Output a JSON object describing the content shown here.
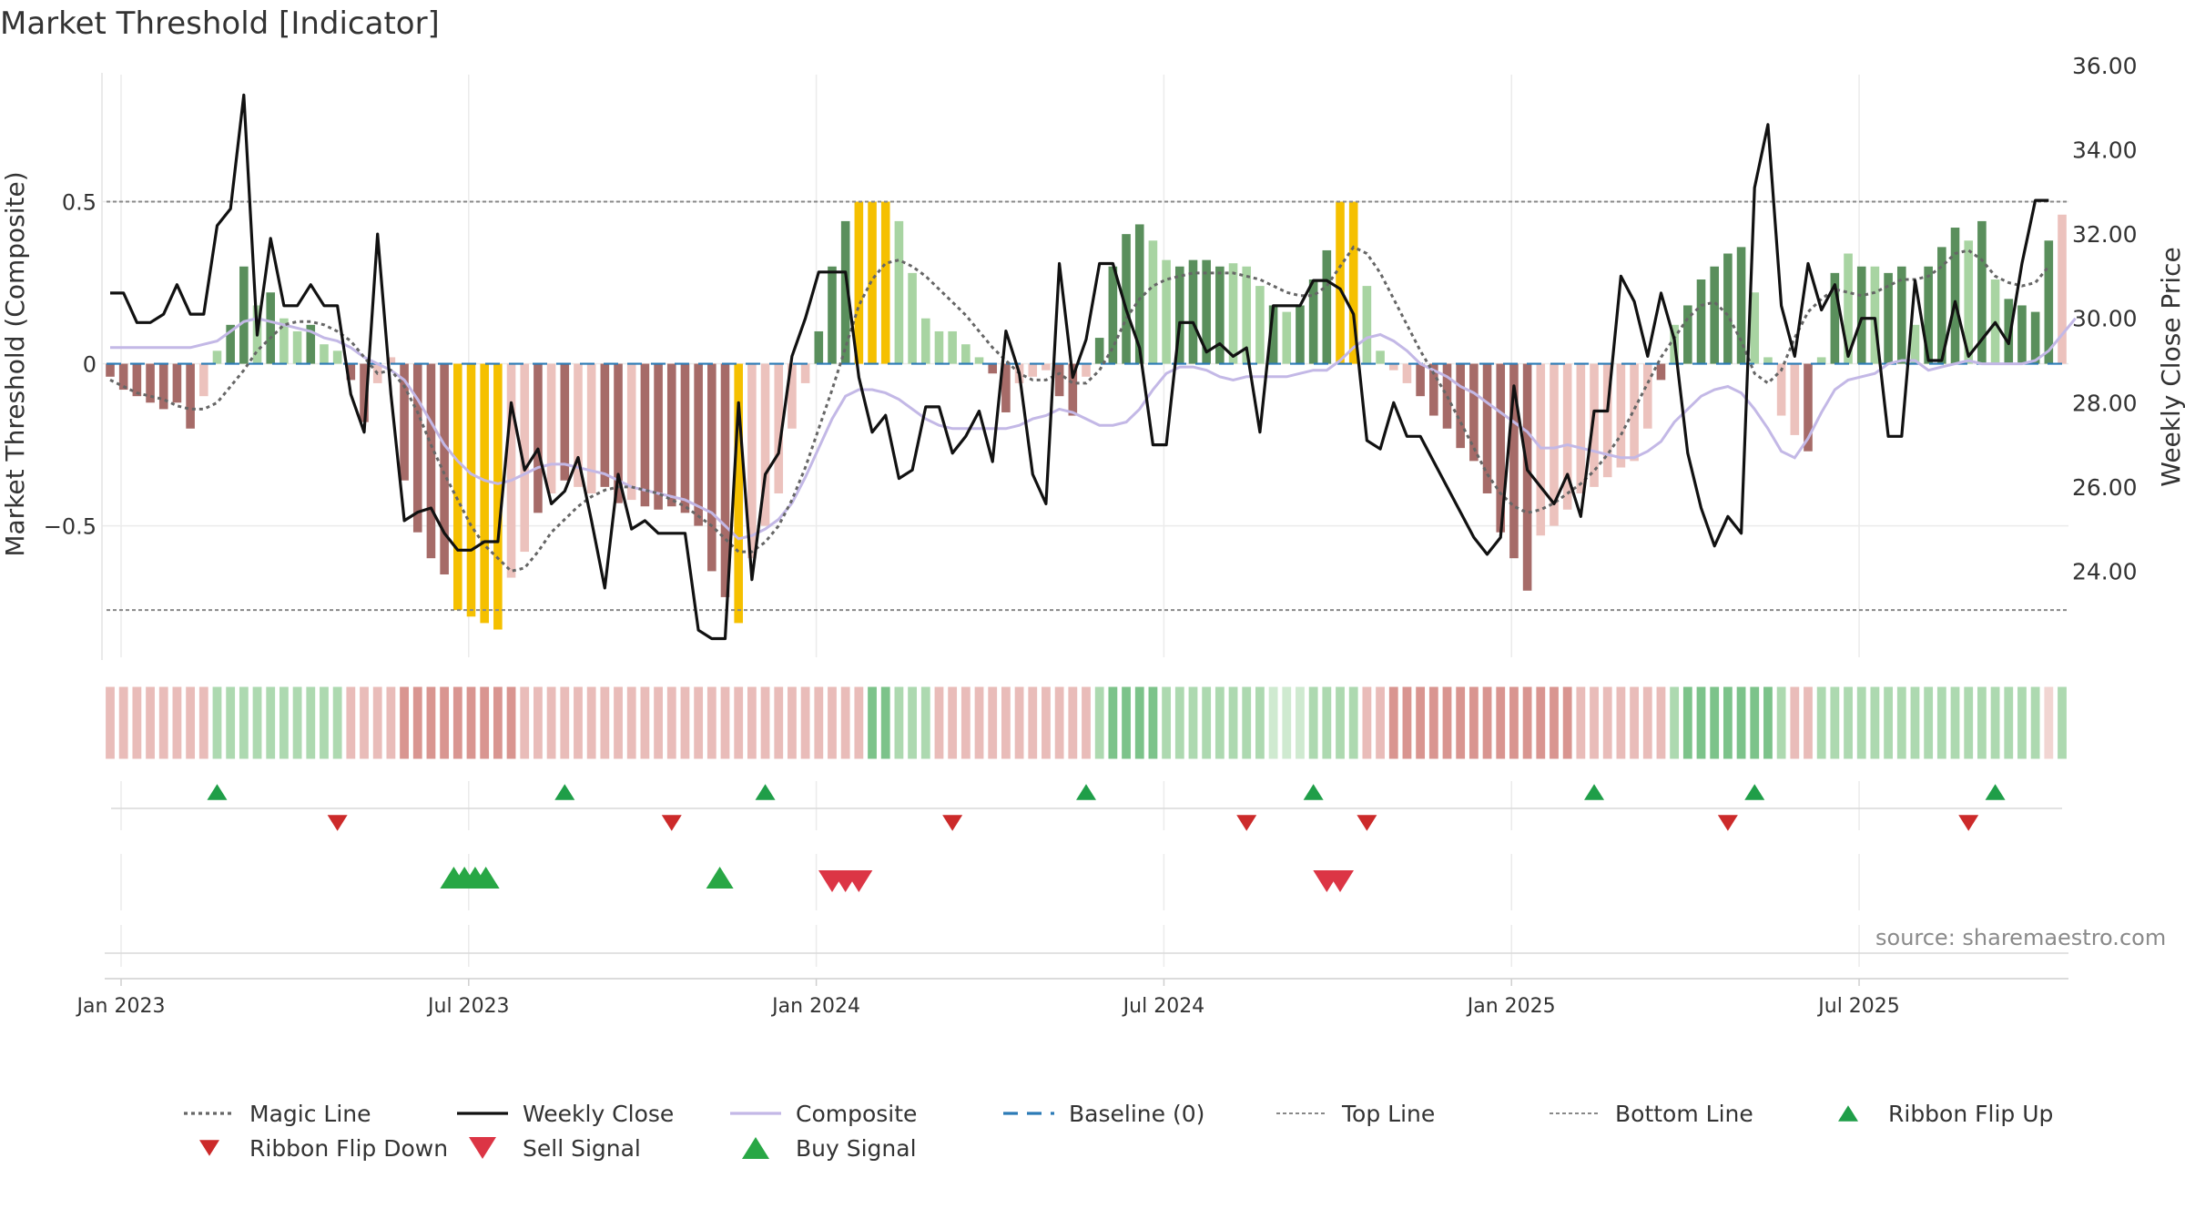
{
  "chart_data": {
    "type": "bar",
    "title": "Market Threshold [Indicator]",
    "source_note": "source: sharemaestro.com",
    "y_left_label": "Market Threshold (Composite)",
    "y_right_label": "Weekly Close Price",
    "y_left_range": [
      -0.9,
      0.92
    ],
    "y_left_ticks": [
      {
        "value": 0.5,
        "label": "0.5"
      },
      {
        "value": 0,
        "label": "0"
      },
      {
        "value": -0.5,
        "label": "−0.5"
      }
    ],
    "y_right_range": [
      22.0,
      36.0
    ],
    "y_right_ticks": [
      {
        "value": 36,
        "label": "36.00"
      },
      {
        "value": 34,
        "label": "34.00"
      },
      {
        "value": 32,
        "label": "32.00"
      },
      {
        "value": 30,
        "label": "30.00"
      },
      {
        "value": 28,
        "label": "28.00"
      },
      {
        "value": 26,
        "label": "26.00"
      },
      {
        "value": 24,
        "label": "24.00"
      }
    ],
    "top_line": 0.5,
    "bottom_line": -0.76,
    "baseline": 0,
    "x_ticks": [
      {
        "week": 0,
        "label": "Jan 2023"
      },
      {
        "week": 26,
        "label": "Jul 2023"
      },
      {
        "week": 52,
        "label": "Jan 2024"
      },
      {
        "week": 78,
        "label": "Jul 2024"
      },
      {
        "week": 104,
        "label": "Jan 2025"
      },
      {
        "week": 130,
        "label": "Jul 2025"
      }
    ],
    "colors": {
      "bar_dark_green": "#5a8f5c",
      "bar_light_green": "#a8d4a2",
      "bar_dark_red": "#a66b68",
      "bar_light_red": "#ecc2bd",
      "bar_signal": "#f5c000",
      "magic_line": "#666666",
      "weekly_close": "#111111",
      "composite": "#c3b8e6",
      "baseline": "#2c7bb6",
      "threshold": "#888888",
      "flip_up": "#1f9e48",
      "flip_down": "#cc2a2a",
      "sell_signal": "#dc3545",
      "buy_signal": "#28a745",
      "grid": "#ebebeb"
    },
    "composite_bars": [
      -0.04,
      -0.08,
      -0.1,
      -0.12,
      -0.14,
      -0.12,
      -0.2,
      -0.1,
      0.04,
      0.12,
      0.3,
      0.18,
      0.22,
      0.14,
      0.1,
      0.12,
      0.06,
      0.04,
      -0.05,
      -0.18,
      -0.06,
      0.02,
      -0.36,
      -0.52,
      -0.6,
      -0.65,
      -0.76,
      -0.78,
      -0.8,
      -0.82,
      -0.66,
      -0.58,
      -0.46,
      -0.4,
      -0.36,
      -0.38,
      -0.4,
      -0.38,
      -0.43,
      -0.42,
      -0.44,
      -0.45,
      -0.44,
      -0.46,
      -0.5,
      -0.64,
      -0.72,
      -0.8,
      -0.6,
      -0.5,
      -0.4,
      -0.2,
      -0.06,
      0.1,
      0.3,
      0.44,
      0.5,
      0.5,
      0.5,
      0.44,
      0.28,
      0.14,
      0.1,
      0.1,
      0.06,
      0.02,
      -0.03,
      -0.15,
      -0.06,
      -0.04,
      -0.02,
      -0.1,
      -0.16,
      -0.04,
      0.08,
      0.3,
      0.4,
      0.43,
      0.38,
      0.32,
      0.3,
      0.32,
      0.32,
      0.3,
      0.31,
      0.3,
      0.24,
      0.18,
      0.16,
      0.18,
      0.26,
      0.35,
      0.5,
      0.5,
      0.24,
      0.04,
      -0.02,
      -0.06,
      -0.1,
      -0.16,
      -0.2,
      -0.26,
      -0.3,
      -0.4,
      -0.52,
      -0.6,
      -0.7,
      -0.53,
      -0.5,
      -0.45,
      -0.4,
      -0.38,
      -0.35,
      -0.32,
      -0.3,
      -0.2,
      -0.05,
      0.12,
      0.18,
      0.26,
      0.3,
      0.34,
      0.36,
      0.22,
      0.02,
      -0.16,
      -0.22,
      -0.27,
      0.02,
      0.28,
      0.34,
      0.3,
      0.3,
      0.28,
      0.3,
      0.12,
      0.3,
      0.36,
      0.42,
      0.38,
      0.44,
      0.26,
      0.2,
      0.18,
      0.16,
      0.38,
      0.46
    ],
    "bar_styles": [
      "R",
      "R",
      "R",
      "R",
      "R",
      "R",
      "R",
      "r",
      "g",
      "G",
      "G",
      "g",
      "G",
      "g",
      "g",
      "G",
      "g",
      "g",
      "R",
      "R",
      "r",
      "r",
      "R",
      "R",
      "R",
      "R",
      "S",
      "S",
      "S",
      "S",
      "r",
      "r",
      "R",
      "r",
      "R",
      "r",
      "r",
      "R",
      "R",
      "r",
      "R",
      "R",
      "R",
      "R",
      "R",
      "R",
      "R",
      "S",
      "r",
      "r",
      "r",
      "r",
      "r",
      "G",
      "G",
      "G",
      "S",
      "S",
      "S",
      "g",
      "g",
      "g",
      "g",
      "g",
      "g",
      "g",
      "R",
      "R",
      "r",
      "r",
      "r",
      "R",
      "R",
      "r",
      "G",
      "G",
      "G",
      "G",
      "g",
      "g",
      "G",
      "G",
      "G",
      "G",
      "g",
      "g",
      "g",
      "G",
      "g",
      "G",
      "G",
      "G",
      "S",
      "S",
      "g",
      "g",
      "r",
      "r",
      "R",
      "R",
      "R",
      "R",
      "R",
      "R",
      "R",
      "R",
      "R",
      "r",
      "r",
      "r",
      "r",
      "r",
      "r",
      "r",
      "r",
      "r",
      "R",
      "g",
      "G",
      "G",
      "G",
      "G",
      "G",
      "g",
      "g",
      "r",
      "r",
      "R",
      "g",
      "G",
      "g",
      "G",
      "g",
      "G",
      "G",
      "g",
      "G",
      "G",
      "G",
      "g",
      "G",
      "g",
      "G",
      "G",
      "G",
      "G"
    ],
    "magic_line": [
      -0.05,
      -0.07,
      -0.09,
      -0.1,
      -0.11,
      -0.13,
      -0.14,
      -0.14,
      -0.12,
      -0.07,
      -0.02,
      0.04,
      0.08,
      0.12,
      0.13,
      0.13,
      0.12,
      0.1,
      0.07,
      0.02,
      -0.03,
      -0.02,
      -0.07,
      -0.15,
      -0.25,
      -0.34,
      -0.42,
      -0.5,
      -0.56,
      -0.6,
      -0.64,
      -0.63,
      -0.58,
      -0.52,
      -0.48,
      -0.44,
      -0.41,
      -0.39,
      -0.38,
      -0.38,
      -0.39,
      -0.4,
      -0.42,
      -0.44,
      -0.47,
      -0.5,
      -0.54,
      -0.58,
      -0.58,
      -0.55,
      -0.5,
      -0.42,
      -0.32,
      -0.2,
      -0.08,
      0.05,
      0.18,
      0.26,
      0.31,
      0.32,
      0.3,
      0.27,
      0.23,
      0.19,
      0.15,
      0.1,
      0.05,
      0.01,
      -0.03,
      -0.05,
      -0.05,
      -0.03,
      -0.06,
      -0.06,
      -0.02,
      0.05,
      0.14,
      0.2,
      0.24,
      0.26,
      0.27,
      0.28,
      0.28,
      0.28,
      0.28,
      0.27,
      0.26,
      0.24,
      0.22,
      0.21,
      0.21,
      0.24,
      0.3,
      0.36,
      0.34,
      0.28,
      0.2,
      0.12,
      0.04,
      -0.03,
      -0.1,
      -0.18,
      -0.26,
      -0.34,
      -0.4,
      -0.44,
      -0.46,
      -0.45,
      -0.43,
      -0.4,
      -0.37,
      -0.33,
      -0.28,
      -0.22,
      -0.14,
      -0.06,
      0.02,
      0.08,
      0.14,
      0.18,
      0.19,
      0.15,
      0.07,
      -0.03,
      -0.06,
      -0.02,
      0.08,
      0.16,
      0.2,
      0.23,
      0.22,
      0.21,
      0.22,
      0.24,
      0.26,
      0.26,
      0.27,
      0.3,
      0.34,
      0.35,
      0.32,
      0.27,
      0.25,
      0.24,
      0.25,
      0.3
    ],
    "composite_line": [
      0.05,
      0.05,
      0.05,
      0.05,
      0.05,
      0.05,
      0.05,
      0.06,
      0.07,
      0.1,
      0.13,
      0.14,
      0.13,
      0.12,
      0.11,
      0.1,
      0.08,
      0.07,
      0.05,
      0.02,
      0.0,
      -0.02,
      -0.05,
      -0.11,
      -0.18,
      -0.25,
      -0.3,
      -0.34,
      -0.36,
      -0.37,
      -0.36,
      -0.34,
      -0.32,
      -0.31,
      -0.31,
      -0.32,
      -0.33,
      -0.34,
      -0.36,
      -0.38,
      -0.39,
      -0.4,
      -0.41,
      -0.42,
      -0.44,
      -0.46,
      -0.5,
      -0.54,
      -0.53,
      -0.51,
      -0.48,
      -0.43,
      -0.35,
      -0.26,
      -0.17,
      -0.1,
      -0.08,
      -0.08,
      -0.09,
      -0.11,
      -0.14,
      -0.17,
      -0.19,
      -0.2,
      -0.2,
      -0.2,
      -0.2,
      -0.2,
      -0.19,
      -0.17,
      -0.16,
      -0.14,
      -0.15,
      -0.17,
      -0.19,
      -0.19,
      -0.18,
      -0.14,
      -0.08,
      -0.03,
      -0.01,
      -0.01,
      -0.02,
      -0.04,
      -0.05,
      -0.04,
      -0.04,
      -0.04,
      -0.04,
      -0.03,
      -0.02,
      -0.02,
      0.01,
      0.05,
      0.08,
      0.09,
      0.07,
      0.04,
      0.0,
      -0.02,
      -0.04,
      -0.07,
      -0.09,
      -0.12,
      -0.15,
      -0.18,
      -0.21,
      -0.26,
      -0.26,
      -0.25,
      -0.26,
      -0.27,
      -0.28,
      -0.29,
      -0.29,
      -0.27,
      -0.24,
      -0.18,
      -0.14,
      -0.1,
      -0.08,
      -0.07,
      -0.09,
      -0.14,
      -0.2,
      -0.27,
      -0.29,
      -0.23,
      -0.15,
      -0.08,
      -0.05,
      -0.04,
      -0.03,
      0.0,
      0.01,
      0.01,
      -0.02,
      -0.01,
      0.0,
      0.01,
      0.0,
      0.0,
      0.0,
      0.0,
      0.01,
      0.04,
      0.09,
      0.14
    ],
    "weekly_close": [
      30.6,
      30.6,
      29.9,
      29.9,
      30.1,
      30.8,
      30.1,
      30.1,
      32.2,
      32.6,
      35.3,
      29.6,
      31.9,
      30.3,
      30.3,
      30.8,
      30.3,
      30.3,
      28.2,
      27.3,
      32.0,
      28.2,
      25.2,
      25.4,
      25.5,
      24.9,
      24.5,
      24.5,
      24.7,
      24.7,
      28.0,
      26.4,
      26.9,
      25.6,
      25.9,
      26.7,
      25.2,
      23.6,
      26.3,
      25.0,
      25.2,
      24.9,
      24.9,
      24.9,
      22.6,
      22.4,
      22.4,
      28.0,
      23.8,
      26.3,
      26.8,
      29.1,
      30.0,
      31.1,
      31.1,
      31.1,
      28.6,
      27.3,
      27.7,
      26.2,
      26.4,
      27.9,
      27.9,
      26.8,
      27.2,
      27.8,
      26.6,
      29.7,
      28.7,
      26.3,
      25.6,
      31.3,
      28.6,
      29.5,
      31.3,
      31.3,
      30.2,
      29.3,
      27.0,
      27.0,
      29.9,
      29.9,
      29.2,
      29.4,
      29.1,
      29.3,
      27.3,
      30.3,
      30.3,
      30.3,
      30.9,
      30.9,
      30.7,
      30.1,
      27.1,
      26.9,
      28.0,
      27.2,
      27.2,
      26.6,
      26.0,
      25.4,
      24.8,
      24.4,
      24.8,
      28.4,
      26.4,
      26.0,
      25.6,
      26.3,
      25.3,
      27.8,
      27.8,
      31.0,
      30.4,
      29.1,
      30.6,
      29.5,
      26.8,
      25.5,
      24.6,
      25.3,
      24.9,
      33.1,
      34.6,
      30.3,
      29.1,
      31.3,
      30.2,
      30.8,
      29.1,
      30.0,
      30.0,
      27.2,
      27.2,
      30.9,
      29.0,
      29.0,
      30.4,
      29.1,
      29.5,
      29.9,
      29.4,
      31.3,
      32.8,
      32.8
    ],
    "ribbon_cells": [
      "r2",
      "r2",
      "r2",
      "r2",
      "r2",
      "r2",
      "r2",
      "r2",
      "g2",
      "g2",
      "g2",
      "g2",
      "g2",
      "g2",
      "g2",
      "g2",
      "g2",
      "g2",
      "r2",
      "r2",
      "r2",
      "r2",
      "r3",
      "r3",
      "r3",
      "r3",
      "r3",
      "r3",
      "r3",
      "r3",
      "r3",
      "r2",
      "r2",
      "r2",
      "r2",
      "r2",
      "r2",
      "r2",
      "r2",
      "r2",
      "r2",
      "r2",
      "r2",
      "r2",
      "r2",
      "r2",
      "r2",
      "r2",
      "r2",
      "r2",
      "r2",
      "r2",
      "r2",
      "r2",
      "r2",
      "r2",
      "r2",
      "g3",
      "g3",
      "g2",
      "g2",
      "g2",
      "r2",
      "r2",
      "r2",
      "r2",
      "r2",
      "r2",
      "r2",
      "r2",
      "r2",
      "r2",
      "r2",
      "r2",
      "g2",
      "g3",
      "g3",
      "g3",
      "g3",
      "g2",
      "g2",
      "g2",
      "g2",
      "g2",
      "g2",
      "g2",
      "g2",
      "g1",
      "g1",
      "g1",
      "g2",
      "g2",
      "g2",
      "g2",
      "r2",
      "r2",
      "r3",
      "r3",
      "r3",
      "r3",
      "r3",
      "r3",
      "r3",
      "r3",
      "r3",
      "r3",
      "r3",
      "r3",
      "r3",
      "r3",
      "r2",
      "r2",
      "r2",
      "r2",
      "r2",
      "r2",
      "r2",
      "g2",
      "g3",
      "g3",
      "g3",
      "g3",
      "g3",
      "g3",
      "g3",
      "g2",
      "r2",
      "r2",
      "g2",
      "g2",
      "g2",
      "g2",
      "g2",
      "g2",
      "g2",
      "g2",
      "g2",
      "g2",
      "g2",
      "g2",
      "g2",
      "g2",
      "g2",
      "g2",
      "g2",
      "r1",
      "g2"
    ],
    "ribbon_flip_up_weeks": [
      8,
      34,
      49,
      73,
      90,
      111,
      123,
      141
    ],
    "ribbon_flip_down_weeks": [
      17,
      42,
      63,
      85,
      94,
      121,
      139
    ],
    "buy_signal_weeks": [
      25.7,
      26.5,
      27.3,
      28.1,
      45.6
    ],
    "sell_signal_weeks": [
      54,
      55,
      56,
      91,
      92
    ],
    "legend": [
      {
        "label": "Magic Line",
        "kind": "dotted",
        "color": "#666666"
      },
      {
        "label": "Weekly Close",
        "kind": "solid",
        "color": "#111111"
      },
      {
        "label": "Composite",
        "kind": "solid",
        "color": "#c3b8e6"
      },
      {
        "label": "Baseline (0)",
        "kind": "dashed",
        "color": "#2c7bb6"
      },
      {
        "label": "Top Line",
        "kind": "finedash",
        "color": "#888888"
      },
      {
        "label": "Bottom Line",
        "kind": "finedash",
        "color": "#888888"
      },
      {
        "label": "Ribbon Flip Up",
        "kind": "tri-up-small",
        "color": "#1f9e48"
      },
      {
        "label": "Ribbon Flip Down",
        "kind": "tri-down-small",
        "color": "#cc2a2a"
      },
      {
        "label": "Sell Signal",
        "kind": "tri-down",
        "color": "#dc3545"
      },
      {
        "label": "Buy Signal",
        "kind": "tri-up",
        "color": "#28a745"
      }
    ]
  }
}
